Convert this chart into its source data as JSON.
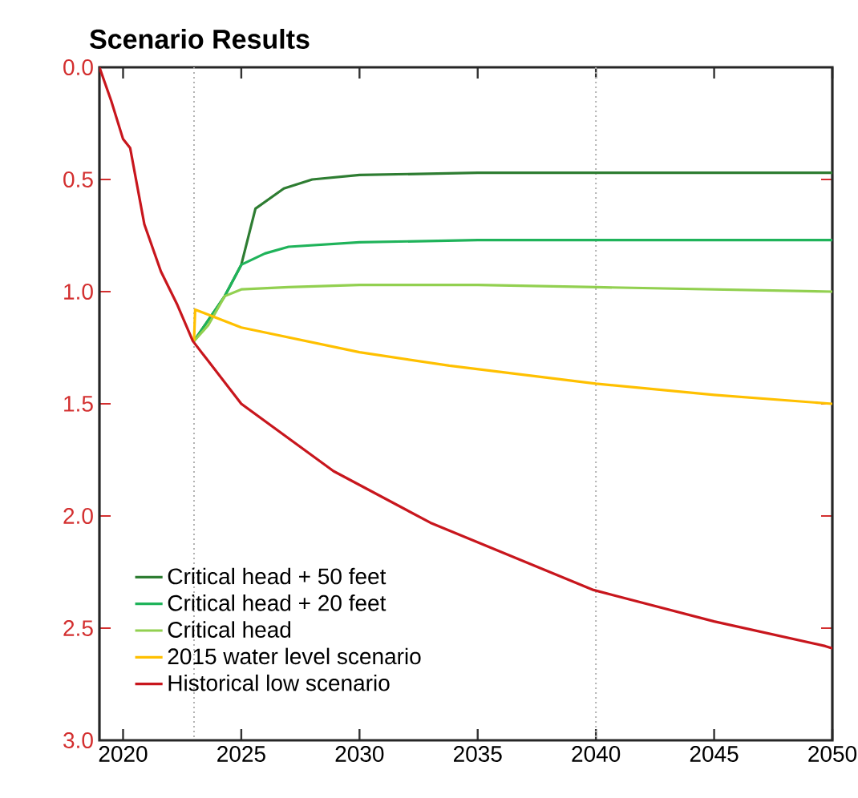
{
  "chart_data": {
    "type": "line",
    "title": "Scenario Results",
    "xlim": [
      2019,
      2050
    ],
    "xticks": [
      2020,
      2025,
      2030,
      2035,
      2040,
      2045,
      2050
    ],
    "ylim": [
      3.0,
      0.0
    ],
    "yticks": [
      {
        "value": 0,
        "label": "0.0"
      },
      0.5,
      {
        "value": 1,
        "label": "1.0"
      },
      1.5,
      {
        "value": 2,
        "label": "2.0"
      },
      2.5,
      {
        "value": 3,
        "label": "3.0"
      }
    ],
    "grid": false,
    "legend": "bottom left",
    "marker": "none",
    "line_style": "solid",
    "ref_lines": [
      {
        "axis": "x",
        "value": 2023,
        "color": "#b0b0b0",
        "line_style": "dotted"
      },
      {
        "axis": "x",
        "value": 2040,
        "color": "#b0b0b0",
        "line_style": "dotted"
      }
    ],
    "series": [
      {
        "name": "Critical head + 50 feet",
        "color": "#2e7d32",
        "x": [
          2023,
          2024.3,
          2025.0,
          2025.6,
          2026.8,
          2028,
          2030,
          2035,
          2040,
          2050
        ],
        "values": [
          1.22,
          1.02,
          0.88,
          0.63,
          0.54,
          0.5,
          0.48,
          0.47,
          0.47,
          0.47
        ]
      },
      {
        "name": "Critical head + 20 feet",
        "color": "#1fb35a",
        "x": [
          2023,
          2024.3,
          2025.0,
          2026,
          2027,
          2030,
          2035,
          2040,
          2050
        ],
        "values": [
          1.22,
          1.02,
          0.88,
          0.83,
          0.8,
          0.78,
          0.77,
          0.77,
          0.77
        ]
      },
      {
        "name": "Critical head",
        "color": "#92d050",
        "x": [
          2023,
          2023.6,
          2024.3,
          2025,
          2027,
          2030,
          2035,
          2040,
          2050
        ],
        "values": [
          1.22,
          1.15,
          1.02,
          0.99,
          0.98,
          0.97,
          0.97,
          0.98,
          1.0
        ]
      },
      {
        "name": "2015 water level scenario",
        "color": "#ffc000",
        "x": [
          2023,
          2023.05,
          2025,
          2030,
          2033.8,
          2040,
          2045,
          2050
        ],
        "values": [
          1.22,
          1.08,
          1.16,
          1.27,
          1.33,
          1.41,
          1.46,
          1.5
        ]
      },
      {
        "name": "Historical low scenario",
        "color": "#c8161d",
        "x": [
          2019,
          2019.5,
          2020.0,
          2020.3,
          2020.9,
          2021.6,
          2022.3,
          2022.95,
          2025.0,
          2028.9,
          2033,
          2039.9,
          2045,
          2049.7,
          2050
        ],
        "values": [
          0.0,
          0.15,
          0.32,
          0.36,
          0.7,
          0.91,
          1.06,
          1.22,
          1.5,
          1.8,
          2.03,
          2.33,
          2.47,
          2.58,
          2.59
        ]
      }
    ]
  }
}
